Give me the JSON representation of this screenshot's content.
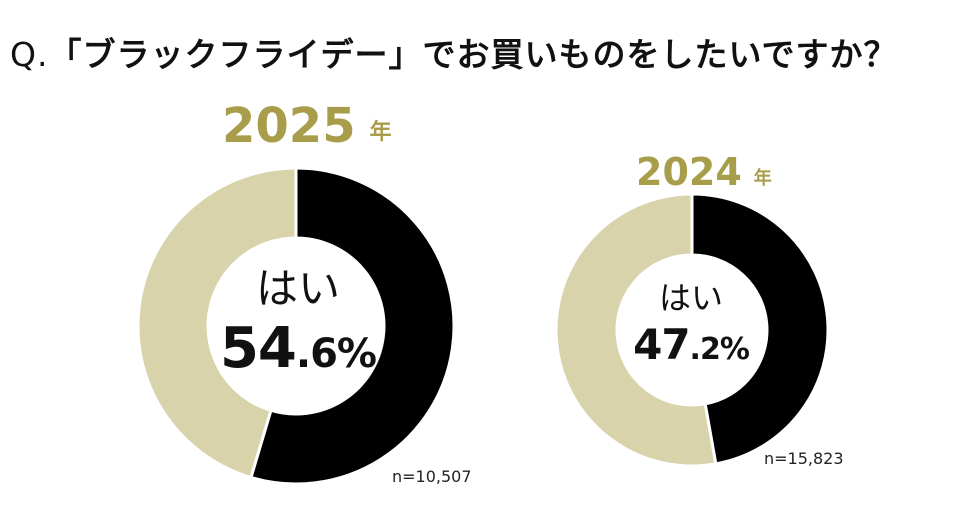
{
  "question": {
    "prefix": "Q.",
    "text": "「ブラックフライデー」でお買いものをしたいですか？"
  },
  "colors": {
    "yes": "#000000",
    "no": "#d8d3aa",
    "year_accent": "#a89d4a",
    "text": "#111111"
  },
  "chart_data": [
    {
      "type": "pie",
      "variant": "donut",
      "year": "2025",
      "year_unit": "年",
      "center_label": "はい",
      "center_value_main": "54",
      "center_value_rest": ".6%",
      "slices": [
        {
          "label": "はい",
          "value": 54.6
        },
        {
          "label": "",
          "value": 45.4
        }
      ],
      "sample_size": "n=10,507"
    },
    {
      "type": "pie",
      "variant": "donut",
      "year": "2024",
      "year_unit": "年",
      "center_label": "はい",
      "center_value_main": "47",
      "center_value_rest": ".2%",
      "slices": [
        {
          "label": "はい",
          "value": 47.2
        },
        {
          "label": "",
          "value": 52.8
        }
      ],
      "sample_size": "n=15,823"
    }
  ]
}
